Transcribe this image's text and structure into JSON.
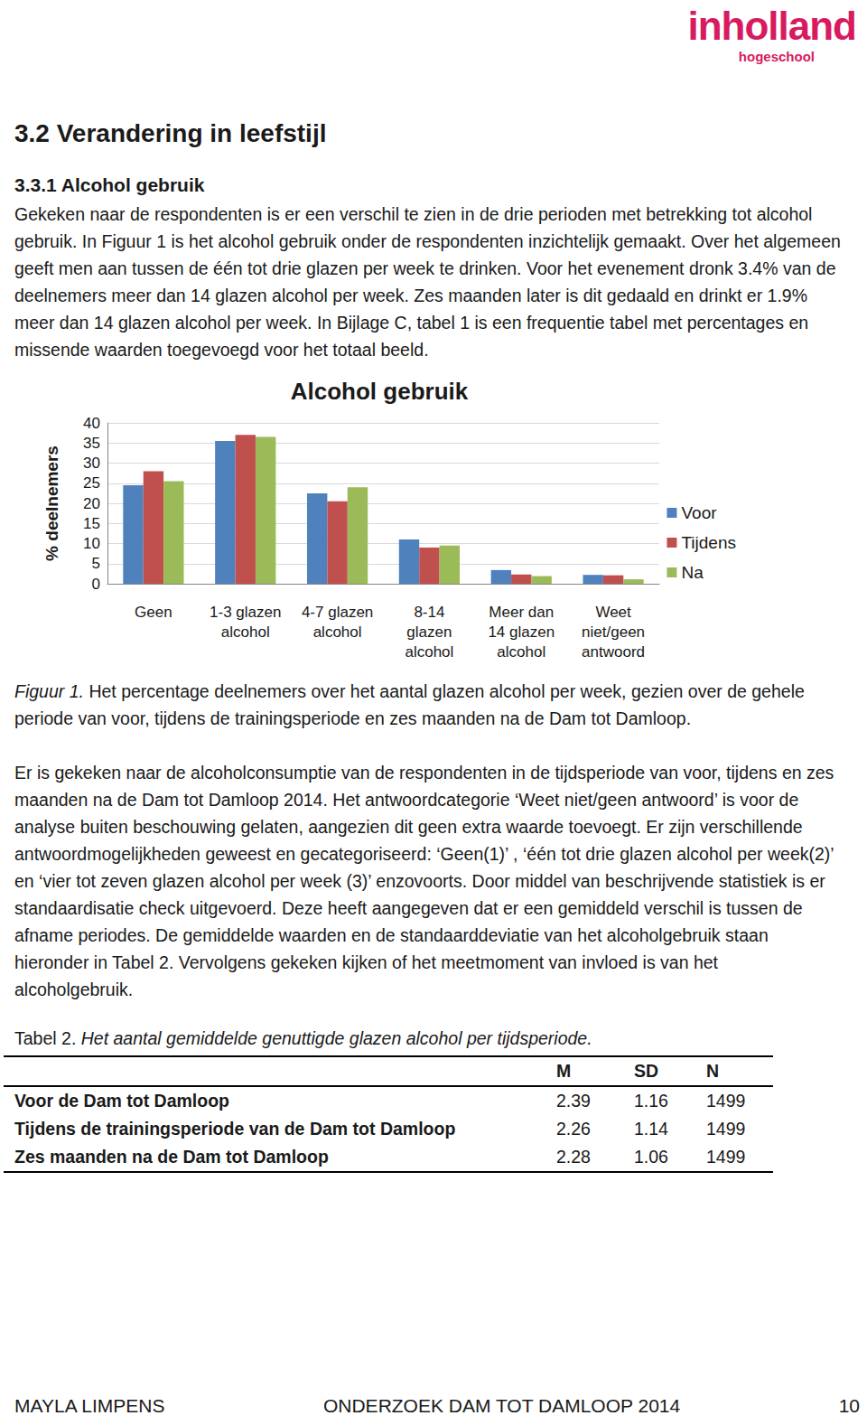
{
  "logo": {
    "name": "inholland",
    "sub": "hogeschool"
  },
  "heading": "3.2 Verandering in leefstijl",
  "subheading": "3.3.1 Alcohol gebruik",
  "paragraph1": "Gekeken naar de respondenten is er een verschil te zien in de drie perioden met betrekking tot alcohol gebruik. In Figuur 1 is het alcohol gebruik onder de respondenten inzichtelijk gemaakt. Over het algemeen geeft men aan tussen de één tot drie glazen per week te drinken. Voor het evenement dronk 3.4% van de deelnemers meer dan 14 glazen alcohol per week. Zes maanden later is dit gedaald en drinkt er 1.9% meer dan 14 glazen alcohol per week. In Bijlage C, tabel 1 is een frequentie tabel met percentages en missende waarden toegevoegd voor het totaal beeld.",
  "chart_data": {
    "type": "bar",
    "title": "Alcohol gebruik",
    "y_label": "% deelnemers",
    "categories": [
      "Geen",
      "1-3 glazen\nalcohol",
      "4-7 glazen\nalcohol",
      "8-14\nglazen\nalcohol",
      "Meer dan\n14 glazen\nalcohol",
      "Weet\nniet/geen\nantwoord"
    ],
    "series": [
      {
        "name": "Voor",
        "color": "#4f81bd",
        "values": [
          24.5,
          35.5,
          22.5,
          11,
          3.4,
          2.2
        ]
      },
      {
        "name": "Tijdens",
        "color": "#c0504d",
        "values": [
          28,
          37,
          20.5,
          9,
          2.3,
          2.1
        ]
      },
      {
        "name": "Na",
        "color": "#9bbb59",
        "values": [
          25.5,
          36.5,
          24,
          9.5,
          1.9,
          1.1
        ]
      }
    ],
    "ylim": [
      0,
      40
    ],
    "yticks": [
      0,
      5,
      10,
      15,
      20,
      25,
      30,
      35,
      40
    ],
    "grid": true,
    "legend": "right"
  },
  "caption": {
    "label": "Figuur 1.",
    "text": "Het percentage deelnemers over het aantal glazen alcohol per week, gezien over de gehele periode van voor, tijdens de trainingsperiode en zes maanden na de Dam tot Damloop."
  },
  "paragraph2": "Er is gekeken naar de alcoholconsumptie van de respondenten in de tijdsperiode van voor, tijdens en zes maanden na de Dam tot Damloop 2014. Het antwoordcategorie ‘Weet niet/geen antwoord’ is voor de analyse buiten beschouwing gelaten, aangezien dit geen extra waarde toevoegt. Er zijn verschillende antwoordmogelijkheden geweest en gecategoriseerd: ‘Geen(1)’ , ‘één tot drie glazen alcohol per week(2)’ en ‘vier tot zeven glazen alcohol per week (3)’ enzovoorts. Door middel van beschrijvende statistiek is er standaardisatie check uitgevoerd. Deze heeft aangegeven dat er een gemiddeld verschil is tussen de afname periodes. De gemiddelde waarden en de standaarddeviatie van het alcoholgebruik staan hieronder in Tabel 2. Vervolgens gekeken kijken of het meetmoment van invloed is van het alcoholgebruik.",
  "table": {
    "label": "Tabel 2.",
    "title": "Het aantal gemiddelde genuttigde glazen alcohol per tijdsperiode.",
    "columns": [
      "M",
      "SD",
      "N"
    ],
    "rows": [
      [
        "Voor de Dam tot Damloop",
        2.39,
        1.16,
        1499
      ],
      [
        "Tijdens de trainingsperiode van de Dam tot Damloop",
        2.26,
        1.14,
        1499
      ],
      [
        "Zes maanden na de Dam tot Damloop",
        2.28,
        1.06,
        1499
      ]
    ]
  },
  "footer": {
    "left": "MAYLA LIMPENS",
    "center": "ONDERZOEK DAM TOT DAMLOOP 2014",
    "right": 10
  }
}
